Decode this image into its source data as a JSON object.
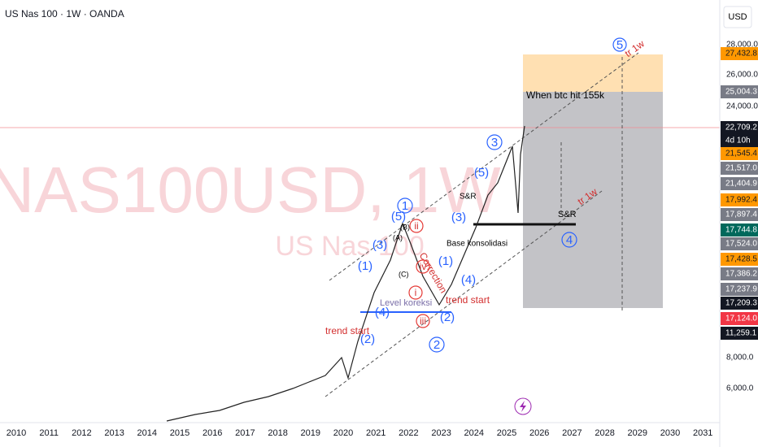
{
  "header": {
    "title": "US Nas 100 · 1W · OANDA",
    "currency": "USD"
  },
  "watermark": {
    "symbol": "NAS100USD, 1W",
    "name": "US Nas 100"
  },
  "price_axis": {
    "labels": [
      "28,000.0",
      "26,000.0",
      "24,000.0",
      "8,000.0",
      "6,000.0"
    ],
    "tags": [
      "27,432.8",
      "25,004.3",
      "22,709.2",
      "4d 10h",
      "21,545.4",
      "21,517.0",
      "21,404.9",
      "17,992.4",
      "17,897.4",
      "17,744.8",
      "17,524.0",
      "17,428.5",
      "17,386.2",
      "17,237.9",
      "17,209.3",
      "17,124.0",
      "11,259.1"
    ]
  },
  "time_axis": {
    "years": [
      "2010",
      "2011",
      "2012",
      "2013",
      "2014",
      "2015",
      "2016",
      "2017",
      "2018",
      "2019",
      "2020",
      "2021",
      "2022",
      "2023",
      "2024",
      "2025",
      "2026",
      "2027",
      "2028",
      "2029",
      "2030",
      "2031"
    ]
  },
  "annotations": {
    "box_label": "When btc hit 155k",
    "wave_5": "5",
    "tr_upper": "tr 1w",
    "tr_lower": "tr 1w",
    "sr_right": "S&R",
    "wave_4": "4",
    "wave_3": "3",
    "wave_1": "1",
    "wave_2": "2",
    "w5a": "(5)",
    "w3a": "(3)",
    "w1a": "(1)",
    "w4a": "(4)",
    "w2a": "(2)",
    "w2b": "(2)",
    "w4b": "(4)",
    "w1b": "(1)",
    "w3b": "(3)",
    "w5b": "(5)",
    "trend_start_1": "trend start",
    "trend_start_2": "trend start",
    "level": "Level koreksi",
    "base": "Base konsolidasi",
    "correction": "Correction",
    "ii": "ii",
    "iv": "iv",
    "i": "i",
    "iii": "iii",
    "sr_left": "S&R",
    "B": "(B)",
    "A": "(A)",
    "C": "(C)"
  }
}
